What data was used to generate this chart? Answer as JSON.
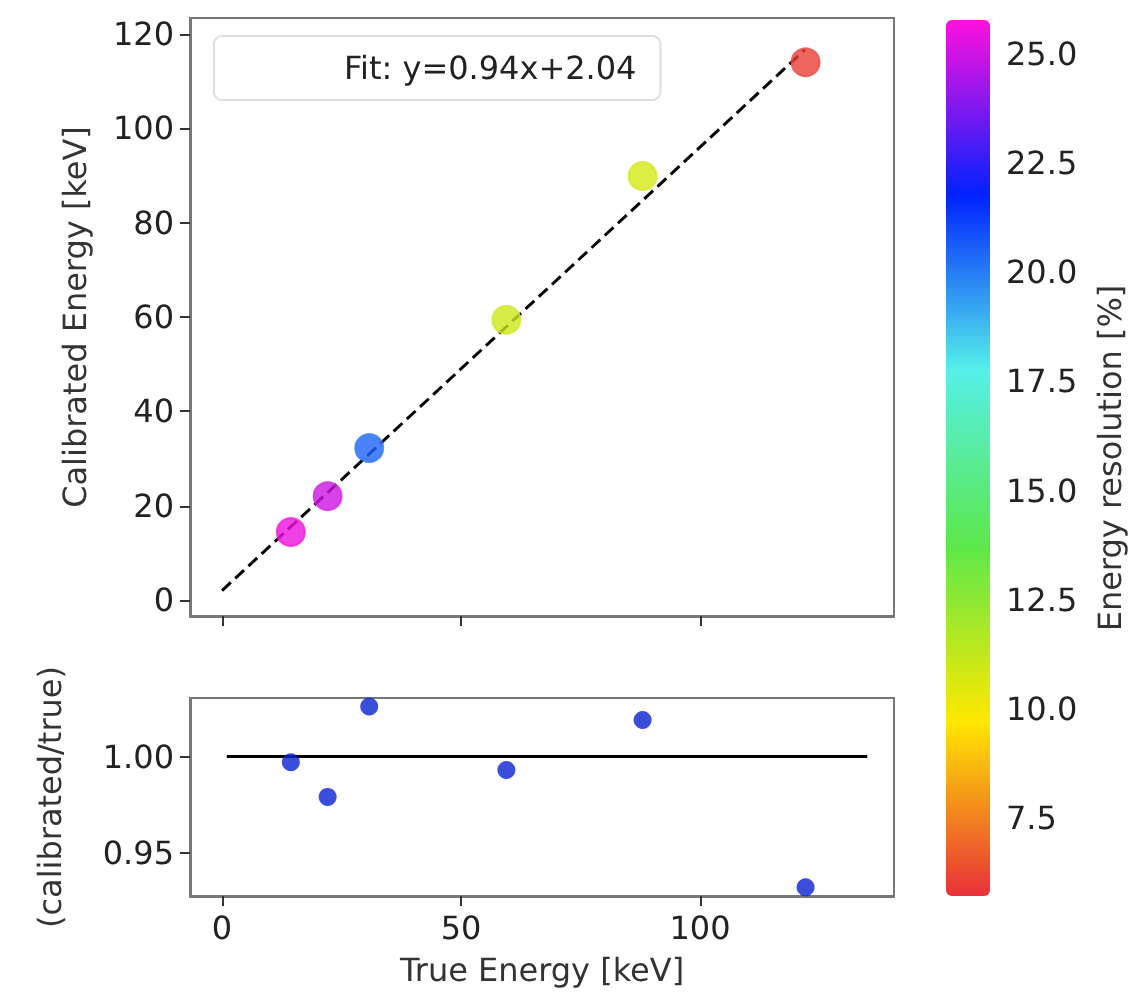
{
  "chart_data": [
    {
      "type": "scatter",
      "ylabel": "Calibrated Energy [keV]",
      "clabel": "Energy resolution [%]",
      "legend": "top left",
      "marker": "circle",
      "x": [
        14.4,
        22.1,
        30.8,
        59.5,
        88.0,
        122.1
      ],
      "series": [
        {
          "values": [
            14.4,
            22,
            32.2,
            59.4,
            89.9,
            114
          ],
          "cvalues": [
            25.5,
            25,
            20.5,
            11,
            10.8,
            6
          ],
          "colors": [
            "#f020d8",
            "#d030d8",
            "#3a7ef0",
            "#d0e830",
            "#d4e830",
            "#e85050"
          ]
        },
        {
          "type": "line",
          "name": "Fit: y=0.94x+2.04",
          "color": "#000000",
          "line_style": "dashed",
          "marker": "none",
          "x": [
            0,
            122
          ],
          "values": [
            2.0,
            116.7
          ]
        }
      ],
      "xlim": [
        -6.7,
        140.6
      ],
      "xticks": [
        {
          "value": 0,
          "label": null
        },
        {
          "value": 50,
          "label": null
        },
        {
          "value": 100,
          "label": null
        }
      ],
      "ylim": [
        -3.4,
        123.4
      ],
      "yticks": [
        0,
        20,
        40,
        60,
        80,
        100,
        120
      ],
      "clim": [
        5.71,
        25.78
      ],
      "cticks": [
        {
          "value": 7.5,
          "label": "7.5"
        },
        {
          "value": 10,
          "label": "10.0"
        },
        {
          "value": 12.5,
          "label": "12.5"
        },
        {
          "value": 15,
          "label": "15.0"
        },
        {
          "value": 17.5,
          "label": "17.5"
        },
        {
          "value": 20,
          "label": "20.0"
        },
        {
          "value": 22.5,
          "label": "22.5"
        },
        {
          "value": 25,
          "label": "25.0"
        }
      ],
      "tick_labels": "y",
      "grid": false
    },
    {
      "type": "scatter",
      "xlabel": "True Energy [keV]",
      "ylabel": "(calibrated/true)",
      "marker": "circle",
      "x": [
        14.4,
        22.1,
        30.8,
        59.5,
        88.0,
        122.1
      ],
      "series": [
        {
          "color": "#0a22d0",
          "values": [
            0.997,
            0.979,
            1.026,
            0.993,
            1.019,
            0.932
          ]
        },
        {
          "type": "line",
          "color": "#000000",
          "line_style": "solid",
          "marker": "none",
          "x": [
            1,
            135
          ],
          "values": [
            1,
            1
          ]
        }
      ],
      "xlim": [
        -6.7,
        140.6
      ],
      "xticks": [
        0,
        50,
        100
      ],
      "ylim": [
        0.9275,
        1.0304
      ],
      "yticks": [
        {
          "value": 0.95,
          "label": "0.95"
        },
        {
          "value": 1,
          "label": "1.00"
        }
      ],
      "grid": false
    }
  ]
}
